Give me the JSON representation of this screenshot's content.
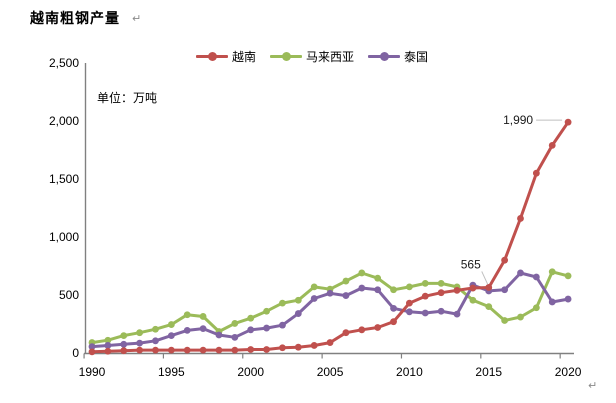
{
  "title": "越南粗钢产量",
  "unit_label": "单位：万吨",
  "paragraph_mark": "↵",
  "chart_data": {
    "type": "line",
    "title": "越南粗钢产量",
    "unit": "万吨",
    "x": [
      1990,
      1991,
      1992,
      1993,
      1994,
      1995,
      1996,
      1997,
      1998,
      1999,
      2000,
      2001,
      2002,
      2003,
      2004,
      2005,
      2006,
      2007,
      2008,
      2009,
      2010,
      2011,
      2012,
      2013,
      2014,
      2015,
      2016,
      2017,
      2018,
      2019,
      2020
    ],
    "series": [
      {
        "name": "越南",
        "color": "#C0504D",
        "values": [
          10,
          15,
          20,
          25,
          25,
          25,
          25,
          25,
          25,
          25,
          30,
          30,
          45,
          50,
          65,
          90,
          175,
          200,
          220,
          270,
          430,
          490,
          520,
          540,
          560,
          565,
          800,
          1160,
          1550,
          1790,
          1990
        ]
      },
      {
        "name": "马来西亚",
        "color": "#9BBB59",
        "values": [
          90,
          110,
          150,
          175,
          205,
          245,
          330,
          315,
          185,
          255,
          300,
          360,
          430,
          455,
          570,
          550,
          620,
          690,
          645,
          545,
          570,
          600,
          600,
          570,
          455,
          400,
          280,
          310,
          390,
          700,
          665
        ]
      },
      {
        "name": "泰国",
        "color": "#8064A2",
        "values": [
          55,
          65,
          75,
          85,
          105,
          150,
          195,
          210,
          155,
          135,
          200,
          215,
          240,
          340,
          470,
          515,
          495,
          560,
          545,
          385,
          355,
          345,
          360,
          335,
          585,
          535,
          545,
          690,
          655,
          440,
          465
        ]
      }
    ],
    "ylim": [
      0,
      2500
    ],
    "ytick_step": 500,
    "ytick_labels": [
      "0",
      "500",
      "1,000",
      "1,500",
      "2,000",
      "2,500"
    ],
    "xticks": [
      1990,
      1995,
      2000,
      2005,
      2010,
      2015,
      2020
    ],
    "legend_position": "top",
    "grid": false,
    "axis_color": "#808080",
    "annotations": [
      {
        "series": "越南",
        "year": 2015,
        "text": "565",
        "placement": "above-left"
      },
      {
        "series": "越南",
        "year": 2020,
        "text": "1,990",
        "placement": "left"
      }
    ]
  }
}
